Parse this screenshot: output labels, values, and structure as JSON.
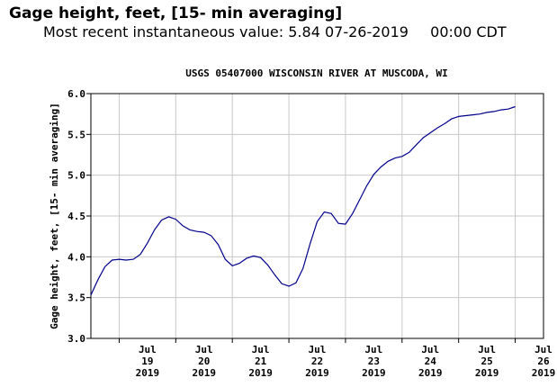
{
  "header": {
    "title": "Gage height, feet, [15- min averaging]",
    "recent_label": "Most recent instantaneous value:",
    "recent_value": "5.84",
    "recent_date": "07-26-2019",
    "recent_time": "00:00 CDT"
  },
  "chart_data": {
    "type": "line",
    "title": "USGS 05407000 WISCONSIN RIVER AT MUSCODA, WI",
    "ylabel": "Gage height, feet, [15- min averaging]",
    "xlabel": "",
    "ylim": [
      3.0,
      6.0
    ],
    "xlim": [
      "2019-07-18T12:00",
      "2019-07-26T12:00"
    ],
    "grid": true,
    "line_color": "#00008b",
    "y_ticks": [
      "3.0",
      "3.5",
      "4.0",
      "4.5",
      "5.0",
      "5.5",
      "6.0"
    ],
    "x_ticks": [
      {
        "month": "Jul",
        "day": "19",
        "year": "2019"
      },
      {
        "month": "Jul",
        "day": "20",
        "year": "2019"
      },
      {
        "month": "Jul",
        "day": "21",
        "year": "2019"
      },
      {
        "month": "Jul",
        "day": "22",
        "year": "2019"
      },
      {
        "month": "Jul",
        "day": "23",
        "year": "2019"
      },
      {
        "month": "Jul",
        "day": "24",
        "year": "2019"
      },
      {
        "month": "Jul",
        "day": "25",
        "year": "2019"
      },
      {
        "month": "Jul",
        "day": "26",
        "year": "2019"
      }
    ],
    "series": [
      {
        "x": [
          "2019-07-18T12:00",
          "2019-07-18T15:00",
          "2019-07-18T18:00",
          "2019-07-18T21:00",
          "2019-07-19T00:00",
          "2019-07-19T03:00",
          "2019-07-19T06:00",
          "2019-07-19T09:00",
          "2019-07-19T12:00",
          "2019-07-19T15:00",
          "2019-07-19T18:00",
          "2019-07-19T21:00",
          "2019-07-20T00:00",
          "2019-07-20T03:00",
          "2019-07-20T06:00",
          "2019-07-20T09:00",
          "2019-07-20T12:00",
          "2019-07-20T15:00",
          "2019-07-20T18:00",
          "2019-07-20T21:00",
          "2019-07-21T00:00",
          "2019-07-21T03:00",
          "2019-07-21T06:00",
          "2019-07-21T09:00",
          "2019-07-21T12:00",
          "2019-07-21T15:00",
          "2019-07-21T18:00",
          "2019-07-21T21:00",
          "2019-07-22T00:00",
          "2019-07-22T03:00",
          "2019-07-22T06:00",
          "2019-07-22T09:00",
          "2019-07-22T12:00",
          "2019-07-22T15:00",
          "2019-07-22T18:00",
          "2019-07-22T21:00",
          "2019-07-23T00:00",
          "2019-07-23T03:00",
          "2019-07-23T06:00",
          "2019-07-23T09:00",
          "2019-07-23T12:00",
          "2019-07-23T15:00",
          "2019-07-23T18:00",
          "2019-07-23T21:00",
          "2019-07-24T00:00",
          "2019-07-24T03:00",
          "2019-07-24T06:00",
          "2019-07-24T09:00",
          "2019-07-24T12:00",
          "2019-07-24T15:00",
          "2019-07-24T18:00",
          "2019-07-24T21:00",
          "2019-07-25T00:00",
          "2019-07-25T03:00",
          "2019-07-25T06:00",
          "2019-07-25T09:00",
          "2019-07-25T12:00",
          "2019-07-25T15:00",
          "2019-07-25T18:00",
          "2019-07-25T21:00",
          "2019-07-26T00:00"
        ],
        "values": [
          3.53,
          3.72,
          3.88,
          3.96,
          3.97,
          3.96,
          3.97,
          4.03,
          4.17,
          4.33,
          4.45,
          4.49,
          4.46,
          4.38,
          4.33,
          4.31,
          4.3,
          4.26,
          4.15,
          3.97,
          3.89,
          3.92,
          3.98,
          4.01,
          3.99,
          3.9,
          3.78,
          3.67,
          3.64,
          3.68,
          3.86,
          4.16,
          4.43,
          4.55,
          4.53,
          4.41,
          4.4,
          4.53,
          4.7,
          4.87,
          5.01,
          5.1,
          5.17,
          5.21,
          5.23,
          5.28,
          5.37,
          5.46,
          5.52,
          5.58,
          5.63,
          5.69,
          5.72,
          5.73,
          5.74,
          5.75,
          5.77,
          5.78,
          5.8,
          5.81,
          5.84
        ]
      }
    ]
  }
}
